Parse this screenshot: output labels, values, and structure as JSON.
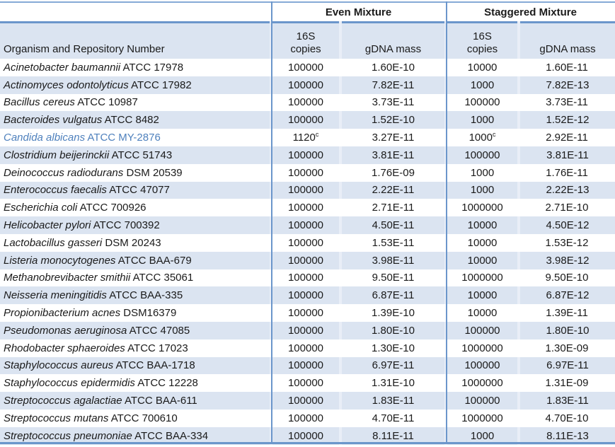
{
  "colors": {
    "border_blue": "#6b96cb",
    "band_fill": "#dbe4f1",
    "cell_gap": "#e9eef7",
    "highlight_text": "#4f81bd",
    "text": "#1a1a1a"
  },
  "table": {
    "group_headers": {
      "even": "Even Mixture",
      "staggered": "Staggered Mixture"
    },
    "column_headers": {
      "organism": "Organism and Repository Number",
      "copies_top": "16S",
      "copies_bottom": "copies",
      "gdna": "gDNA mass"
    },
    "rows": [
      {
        "name": "Acinetobacter baumannii",
        "repo": "ATCC 17978",
        "even_copies": "100000",
        "even_gdna": "1.60E-10",
        "stag_copies": "10000",
        "stag_gdna": "1.60E-11"
      },
      {
        "name": "Actinomyces odontolyticus",
        "repo": "ATCC 17982",
        "even_copies": "100000",
        "even_gdna": "7.82E-11",
        "stag_copies": "1000",
        "stag_gdna": "7.82E-13"
      },
      {
        "name": "Bacillus cereus",
        "repo": "ATCC 10987",
        "even_copies": "100000",
        "even_gdna": "3.73E-11",
        "stag_copies": "100000",
        "stag_gdna": "3.73E-11"
      },
      {
        "name": "Bacteroides vulgatus",
        "repo": "ATCC 8482",
        "even_copies": "100000",
        "even_gdna": "1.52E-10",
        "stag_copies": "1000",
        "stag_gdna": "1.52E-12"
      },
      {
        "name": "Candida albicans",
        "repo": "ATCC MY-2876",
        "even_copies": "1120",
        "even_copies_sup": "c",
        "even_gdna": "3.27E-11",
        "stag_copies": "1000",
        "stag_copies_sup": "c",
        "stag_gdna": "2.92E-11",
        "highlight": true
      },
      {
        "name": "Clostridium beijerinckii",
        "repo": "ATCC 51743",
        "even_copies": "100000",
        "even_gdna": "3.81E-11",
        "stag_copies": "100000",
        "stag_gdna": "3.81E-11"
      },
      {
        "name": "Deinococcus radiodurans",
        "repo": "DSM 20539",
        "even_copies": "100000",
        "even_gdna": "1.76E-09",
        "stag_copies": "1000",
        "stag_gdna": "1.76E-11"
      },
      {
        "name": "Enterococcus faecalis",
        "repo": "ATCC 47077",
        "even_copies": "100000",
        "even_gdna": "2.22E-11",
        "stag_copies": "1000",
        "stag_gdna": "2.22E-13"
      },
      {
        "name": "Escherichia coli",
        "repo": "ATCC 700926",
        "even_copies": "100000",
        "even_gdna": "2.71E-11",
        "stag_copies": "1000000",
        "stag_gdna": "2.71E-10"
      },
      {
        "name": "Helicobacter pylori",
        "repo": "ATCC 700392",
        "even_copies": "100000",
        "even_gdna": "4.50E-11",
        "stag_copies": "10000",
        "stag_gdna": "4.50E-12"
      },
      {
        "name": "Lactobacillus gasseri",
        "repo": "DSM 20243",
        "even_copies": "100000",
        "even_gdna": "1.53E-11",
        "stag_copies": "10000",
        "stag_gdna": "1.53E-12"
      },
      {
        "name": "Listeria monocytogenes",
        "repo": "ATCC BAA-679",
        "even_copies": "100000",
        "even_gdna": "3.98E-11",
        "stag_copies": "10000",
        "stag_gdna": "3.98E-12"
      },
      {
        "name": "Methanobrevibacter smithii",
        "repo": "ATCC 35061",
        "even_copies": "100000",
        "even_gdna": "9.50E-11",
        "stag_copies": "1000000",
        "stag_gdna": "9.50E-10"
      },
      {
        "name": "Neisseria meningitidis",
        "repo": "ATCC BAA-335",
        "even_copies": "100000",
        "even_gdna": "6.87E-11",
        "stag_copies": "10000",
        "stag_gdna": "6.87E-12"
      },
      {
        "name": "Propionibacterium acnes",
        "repo": "DSM16379",
        "even_copies": "100000",
        "even_gdna": "1.39E-10",
        "stag_copies": "10000",
        "stag_gdna": "1.39E-11"
      },
      {
        "name": "Pseudomonas aeruginosa",
        "repo": "ATCC 47085",
        "even_copies": "100000",
        "even_gdna": "1.80E-10",
        "stag_copies": "100000",
        "stag_gdna": "1.80E-10"
      },
      {
        "name": "Rhodobacter sphaeroides",
        "repo": "ATCC 17023",
        "even_copies": "100000",
        "even_gdna": "1.30E-10",
        "stag_copies": "1000000",
        "stag_gdna": "1.30E-09"
      },
      {
        "name": "Staphylococcus aureus",
        "repo": "ATCC BAA-1718",
        "even_copies": "100000",
        "even_gdna": "6.97E-11",
        "stag_copies": "100000",
        "stag_gdna": "6.97E-11"
      },
      {
        "name": "Staphylococcus epidermidis",
        "repo": "ATCC 12228",
        "even_copies": "100000",
        "even_gdna": "1.31E-10",
        "stag_copies": "1000000",
        "stag_gdna": "1.31E-09"
      },
      {
        "name": "Streptococcus agalactiae",
        "repo": "ATCC BAA-611",
        "even_copies": "100000",
        "even_gdna": "1.83E-11",
        "stag_copies": "100000",
        "stag_gdna": "1.83E-11"
      },
      {
        "name": "Streptococcus mutans",
        "repo": "ATCC 700610",
        "even_copies": "100000",
        "even_gdna": "4.70E-11",
        "stag_copies": "1000000",
        "stag_gdna": "4.70E-10"
      },
      {
        "name": "Streptococcus pneumoniae",
        "repo": "ATCC BAA-334",
        "even_copies": "100000",
        "even_gdna": "8.11E-11",
        "stag_copies": "1000",
        "stag_gdna": "8.11E-13"
      }
    ]
  }
}
